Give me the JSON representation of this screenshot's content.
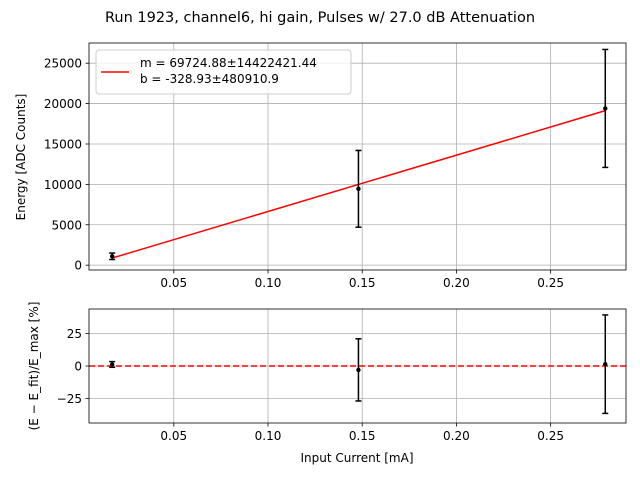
{
  "figure": {
    "suptitle": "Run 1923, channel6, hi gain, Pulses w/ 27.0 dB Attenuation"
  },
  "chart_data": [
    {
      "type": "scatter",
      "xlabel": "",
      "ylabel": "Energy [ADC Counts]",
      "xlim": [
        0.005,
        0.29
      ],
      "ylim": [
        -600,
        27500
      ],
      "xticks": [
        0.05,
        0.1,
        0.15,
        0.2,
        0.25
      ],
      "xtick_labels": [
        "0.05",
        "0.10",
        "0.15",
        "0.20",
        "0.25"
      ],
      "yticks": [
        0,
        5000,
        10000,
        15000,
        20000,
        25000
      ],
      "ytick_labels": [
        "0",
        "5000",
        "10000",
        "15000",
        "20000",
        "25000"
      ],
      "grid": true,
      "legend_position": "top-left",
      "legend": [
        "m = 69724.88±14422421.44",
        "b = -328.93±480910.9"
      ],
      "points": [
        {
          "x": 0.0173,
          "y": 1100,
          "err": 400
        },
        {
          "x": 0.148,
          "y": 9450,
          "err": 4750
        },
        {
          "x": 0.279,
          "y": 19400,
          "err": 7300
        }
      ],
      "fit_line": {
        "color": "#ff0000",
        "x": [
          0.0173,
          0.279
        ],
        "y": [
          877,
          19125
        ]
      }
    },
    {
      "type": "scatter",
      "xlabel": "Input Current [mA]",
      "ylabel": "(E − E_fit)/E_max [%]",
      "xlim": [
        0.005,
        0.29
      ],
      "ylim": [
        -44,
        44
      ],
      "xticks": [
        0.05,
        0.1,
        0.15,
        0.2,
        0.25
      ],
      "xtick_labels": [
        "0.05",
        "0.10",
        "0.15",
        "0.20",
        "0.25"
      ],
      "yticks": [
        -25,
        0,
        25
      ],
      "ytick_labels": [
        "−25",
        "0",
        "25"
      ],
      "grid": true,
      "points": [
        {
          "x": 0.0173,
          "y": 1.2,
          "err": 2.2
        },
        {
          "x": 0.148,
          "y": -3.0,
          "err": 24.0
        },
        {
          "x": 0.279,
          "y": 1.4,
          "err": 38.0
        }
      ],
      "zero_line": {
        "y": 0,
        "color": "#ff0000",
        "style": "dashed"
      }
    }
  ]
}
